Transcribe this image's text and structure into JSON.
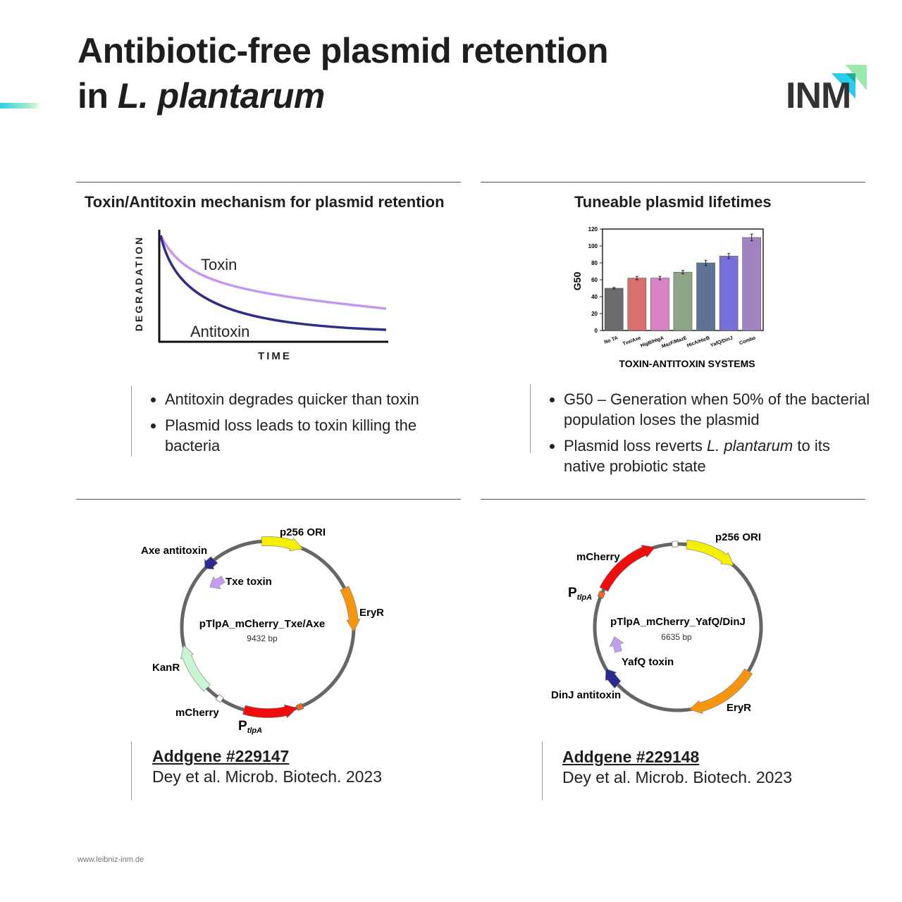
{
  "header": {
    "title_line1": "Antibiotic-free plasmid retention",
    "title_line2_prefix": "in ",
    "title_line2_italic": "L. plantarum",
    "logo_text": "INM"
  },
  "mechanism": {
    "heading": "Toxin/Antitoxin mechanism for plasmid retention",
    "y_label": "DEGRADATION",
    "x_label": "TIME",
    "toxin_label": "Toxin",
    "antitoxin_label": "Antitoxin",
    "bullets": [
      "Antitoxin degrades quicker than toxin",
      "Plasmid loss leads to toxin killing the bacteria"
    ]
  },
  "lifetimes": {
    "heading": "Tuneable plasmid lifetimes",
    "bullet1": "G50 – Generation when 50% of the bacterial population loses the plasmid",
    "bullet2_pre": "Plasmid loss reverts ",
    "bullet2_italic": "L. plantarum",
    "bullet2_post": " to its native probiotic state"
  },
  "chart_data": {
    "type": "bar",
    "title": "",
    "xlabel": "TOXIN-ANTITOXIN SYSTEMS",
    "ylabel": "G50",
    "ylim": [
      0,
      120
    ],
    "yticks": [
      0,
      20,
      40,
      60,
      80,
      100,
      120
    ],
    "categories": [
      "No TA",
      "Txe/Axe",
      "HigB/HigA",
      "MazF/MazE",
      "HicA/HicB",
      "YafQ/DinJ",
      "Combo"
    ],
    "values": [
      50,
      62,
      62,
      69,
      80,
      88,
      110
    ],
    "errors": [
      1,
      2,
      2,
      2,
      3,
      3,
      4
    ],
    "colors": [
      "#6b6b6b",
      "#d96f6f",
      "#d983c4",
      "#8fa587",
      "#5f7399",
      "#7870d8",
      "#a283c2"
    ],
    "grid": false
  },
  "plasmid1": {
    "name": "pTlpA_mCherry_Txe/Axe",
    "size": "9432 bp",
    "labels": {
      "ori": "p256 ORI",
      "antitoxin": "Axe antitoxin",
      "toxin": "Txe toxin",
      "eryr": "EryR",
      "kanr": "KanR",
      "mcherry": "mCherry",
      "promoter": "P",
      "promoter_sub": "tlpA"
    },
    "ref_id": "Addgene #229147",
    "citation": "Dey et al. Microb. Biotech. 2023"
  },
  "plasmid2": {
    "name": "pTlpA_mCherry_YafQ/DinJ",
    "size": "6635 bp",
    "labels": {
      "ori": "p256 ORI",
      "mcherry": "mCherry",
      "promoter": "P",
      "promoter_sub": "tlpA",
      "toxin": "YafQ toxin",
      "antitoxin": "DinJ antitoxin",
      "eryr": "EryR"
    },
    "ref_id": "Addgene #229148",
    "citation": "Dey et al. Microb. Biotech. 2023"
  },
  "footer": {
    "url": "www.leibniz-inm.de"
  }
}
